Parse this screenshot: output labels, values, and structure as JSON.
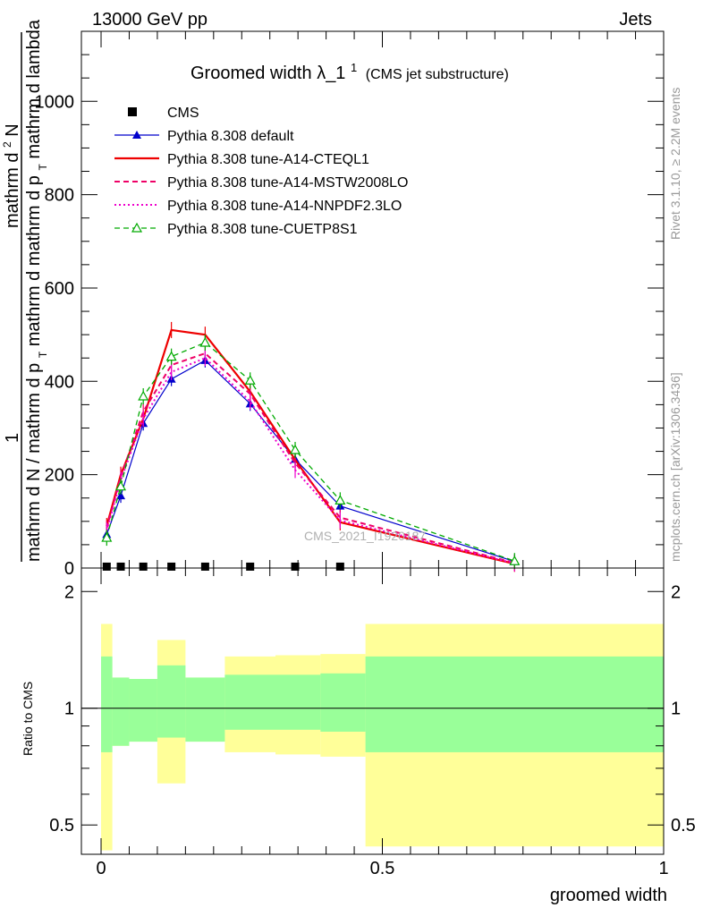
{
  "header": {
    "left": "13000 GeV pp",
    "right": "Jets"
  },
  "title": {
    "main": "Groomed width",
    "lambda": "λ_1",
    "sup": "1",
    "sub": "(CMS jet substructure)"
  },
  "y_axis_label": {
    "top_line_1": "1",
    "top_line_2": "mathrm d N / mathrm d p",
    "top_sub": "T",
    "top_line_3": "mathrm d",
    "numerator": "mathrm d",
    "numerator_sup": "2",
    "numerator_N": "N",
    "denominator": "mathrm d p",
    "denominator_sub": "T",
    "denominator_rest": "mathrm d lambda"
  },
  "side_text": {
    "rivet": "Rivet 3.1.10, ≥ 2.2M events",
    "mcplots": "mcplots.cern.ch [arXiv:1306.3436]"
  },
  "watermark": "CMS_2021_I1920187",
  "x_axis_label": "groomed width",
  "ratio_label": "Ratio to CMS",
  "colors": {
    "cms": "#000000",
    "default": "#0000cc",
    "cteql1": "#ee0000",
    "mstw": "#ee0066",
    "nnpdf": "#ee00cc",
    "cuetp8s1": "#00aa00",
    "band_inner": "#99ff99",
    "band_outer": "#ffff99"
  },
  "chart_data": [
    {
      "type": "line",
      "title": "Groomed width λ_1^1 (CMS jet substructure)",
      "xlabel": "groomed width",
      "ylabel": "1 / (mathrm d N / mathrm d p_T) mathrm d^2 N / (mathrm d p_T mathrm d lambda)",
      "xlim": [
        -0.035,
        1.0
      ],
      "ylim": [
        0,
        1150
      ],
      "yticks": [
        0,
        200,
        400,
        600,
        800,
        1000
      ],
      "legend_position": "top-left",
      "x": [
        0.01,
        0.035,
        0.075,
        0.125,
        0.185,
        0.265,
        0.345,
        0.425,
        0.735
      ],
      "series": [
        {
          "name": "CMS",
          "marker": "square",
          "values": [
            3,
            3,
            3,
            3,
            3,
            3,
            3,
            3,
            null
          ]
        },
        {
          "name": "Pythia 8.308 default",
          "style": "solid",
          "marker": "triangle",
          "values": [
            72,
            155,
            310,
            405,
            445,
            352,
            233,
            133,
            14
          ]
        },
        {
          "name": "Pythia 8.308 tune-A14-CTEQL1",
          "style": "solid",
          "marker": "none",
          "values": [
            90,
            200,
            320,
            510,
            500,
            378,
            232,
            98,
            9
          ]
        },
        {
          "name": "Pythia 8.308 tune-A14-MSTW2008LO",
          "style": "dashed",
          "marker": "none",
          "values": [
            85,
            195,
            335,
            435,
            460,
            373,
            225,
            108,
            11
          ]
        },
        {
          "name": "Pythia 8.308 tune-A14-NNPDF2.3LO",
          "style": "dotted",
          "marker": "none",
          "values": [
            80,
            188,
            320,
            420,
            450,
            357,
            210,
            102,
            10
          ]
        },
        {
          "name": "Pythia 8.308 tune-CUETP8S1",
          "style": "dashed",
          "marker": "open-triangle",
          "values": [
            65,
            175,
            368,
            453,
            483,
            402,
            253,
            145,
            15
          ]
        }
      ]
    },
    {
      "type": "area",
      "title": "",
      "ylabel": "Ratio to CMS",
      "xlabel": "groomed width",
      "xlim": [
        -0.035,
        1.0
      ],
      "ylim": [
        0.42,
        2.3
      ],
      "xticks": [
        0,
        0.5,
        1
      ],
      "yticks": [
        0.5,
        1,
        2
      ],
      "reference_line": 1,
      "bins": [
        {
          "x0": 0.0,
          "x1": 0.02,
          "inner": [
            0.77,
            1.36
          ],
          "outer": [
            0.43,
            1.65
          ]
        },
        {
          "x0": 0.02,
          "x1": 0.05,
          "inner": [
            0.8,
            1.2
          ],
          "outer": [
            0.8,
            1.2
          ]
        },
        {
          "x0": 0.05,
          "x1": 0.1,
          "inner": [
            0.82,
            1.19
          ],
          "outer": [
            0.82,
            1.19
          ]
        },
        {
          "x0": 0.1,
          "x1": 0.15,
          "inner": [
            0.84,
            1.29
          ],
          "outer": [
            0.64,
            1.5
          ]
        },
        {
          "x0": 0.15,
          "x1": 0.22,
          "inner": [
            0.82,
            1.2
          ],
          "outer": [
            0.82,
            1.2
          ]
        },
        {
          "x0": 0.22,
          "x1": 0.31,
          "inner": [
            0.88,
            1.22
          ],
          "outer": [
            0.77,
            1.36
          ]
        },
        {
          "x0": 0.31,
          "x1": 0.39,
          "inner": [
            0.88,
            1.22
          ],
          "outer": [
            0.76,
            1.37
          ]
        },
        {
          "x0": 0.39,
          "x1": 0.47,
          "inner": [
            0.87,
            1.23
          ],
          "outer": [
            0.75,
            1.38
          ]
        },
        {
          "x0": 0.47,
          "x1": 1.0,
          "inner": [
            0.77,
            1.36
          ],
          "outer": [
            0.44,
            1.65
          ]
        }
      ]
    }
  ]
}
